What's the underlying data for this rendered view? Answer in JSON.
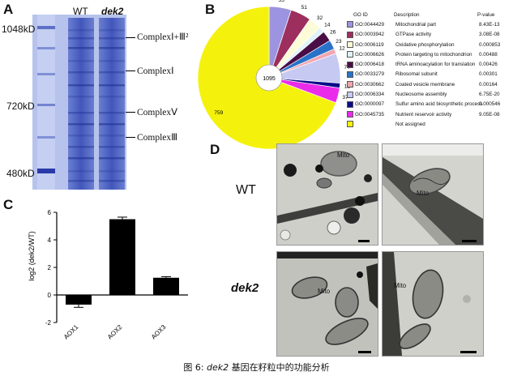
{
  "panelA": {
    "letter": "A",
    "lane_wt": "WT",
    "lane_dek2": "dek2",
    "markers": [
      "1048kD",
      "720kD",
      "480kD"
    ],
    "complexes": [
      "ComplexⅠ+Ⅲ²",
      "ComplexⅠ",
      "ComplexⅤ",
      "ComplexⅢ"
    ]
  },
  "panelB": {
    "letter": "B",
    "center_label": "1095",
    "legend_header": {
      "id": "GO ID",
      "desc": "Description",
      "p": "P-value"
    },
    "legend": [
      {
        "id": "GO:0044429",
        "desc": "Mitochondrial part",
        "p": "8.43E-13",
        "color": "#9c94e0"
      },
      {
        "id": "GO:0003942",
        "desc": "GTPase activity",
        "p": "3.08E-08",
        "color": "#9c2f5e"
      },
      {
        "id": "GO:0006119",
        "desc": "Oxidative phosphorylation",
        "p": "0.000853",
        "color": "#fdfcd8"
      },
      {
        "id": "GO:0006626",
        "desc": "Protein targeting to mitochondrion",
        "p": "0.00488",
        "color": "#dff3fb"
      },
      {
        "id": "GO:0006418",
        "desc": "tRNA aminoacylation for translation",
        "p": "0.00426",
        "color": "#4a0e46"
      },
      {
        "id": "GO:0033279",
        "desc": "Ribosomal subunit",
        "p": "0.00301",
        "color": "#2a72c8"
      },
      {
        "id": "GO:0030662",
        "desc": "Coated vesicle membrane",
        "p": "0.00164",
        "color": "#f2a6b0"
      },
      {
        "id": "GO:0006334",
        "desc": "Nucleosome assembly",
        "p": "6.75E-20",
        "color": "#c6c9f2"
      },
      {
        "id": "GO:0000097",
        "desc": "Sulfur amino acid biosynthetic process",
        "p": "0.000546",
        "color": "#0b0b8a"
      },
      {
        "id": "GO:0045735",
        "desc": "Nutrient reservoir activity",
        "p": "9.05E-08",
        "color": "#ea2bea"
      },
      {
        "id": "",
        "desc": "Not assigned",
        "p": "",
        "color": "#f4f20d"
      }
    ],
    "pie": [
      {
        "label": "55",
        "value": 55,
        "color": "#9c94e0"
      },
      {
        "label": "51",
        "value": 51,
        "color": "#9c2f5e"
      },
      {
        "label": "32",
        "value": 32,
        "color": "#fdfcd8"
      },
      {
        "label": "14",
        "value": 14,
        "color": "#dff3fb"
      },
      {
        "label": "26",
        "value": 26,
        "color": "#4a0e46"
      },
      {
        "label": "23",
        "value": 23,
        "color": "#2a72c8"
      },
      {
        "label": "12",
        "value": 12,
        "color": "#f2a6b0"
      },
      {
        "label": "74",
        "value": 74,
        "color": "#c6c9f2"
      },
      {
        "label": "12",
        "value": 12,
        "color": "#0b0b8a"
      },
      {
        "label": "37",
        "value": 37,
        "color": "#ea2bea"
      },
      {
        "label": "759",
        "value": 759,
        "color": "#f4f20d"
      }
    ]
  },
  "chart_data": {
    "type": "bar",
    "categories": [
      "AOX1",
      "AOX2",
      "AOX3"
    ],
    "values": [
      -0.7,
      5.5,
      1.25
    ],
    "errors": [
      0.2,
      0.15,
      0.08
    ],
    "ylabel": "log2 (dek2/WT)",
    "ylim": [
      -2,
      6
    ],
    "yticks": [
      "-2",
      "0",
      "2",
      "4",
      "6"
    ],
    "letter": "C"
  },
  "panelD": {
    "letter": "D",
    "row_wt": "WT",
    "row_dek2": "dek2",
    "mito_label": "Mito"
  },
  "caption": {
    "prefix": "图 6: ",
    "gene": "dek2",
    "suffix": " 基因在籽粒中的功能分析"
  }
}
